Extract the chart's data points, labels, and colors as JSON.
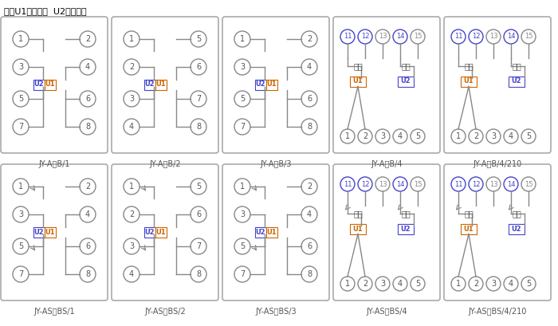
{
  "title_note": "注：U1辅助电源  U2整定电压",
  "background": "#ffffff",
  "box_color": "#aaaaaa",
  "circle_color": "#888888",
  "line_color": "#888888",
  "text_color": "#555555",
  "U1_color": "#cc6600",
  "U2_color": "#4444cc",
  "top_labels": [
    "JY-A、B/1",
    "JY-A、B/2",
    "JY-A、B/3",
    "JY-A、B/4",
    "JY-A、B/4/210"
  ],
  "bottom_labels": [
    "JY-AS、BS/1",
    "JY-AS、BS/2",
    "JY-AS、BS/3",
    "JY-AS、BS/4",
    "JY-AS、BS/4/210"
  ]
}
